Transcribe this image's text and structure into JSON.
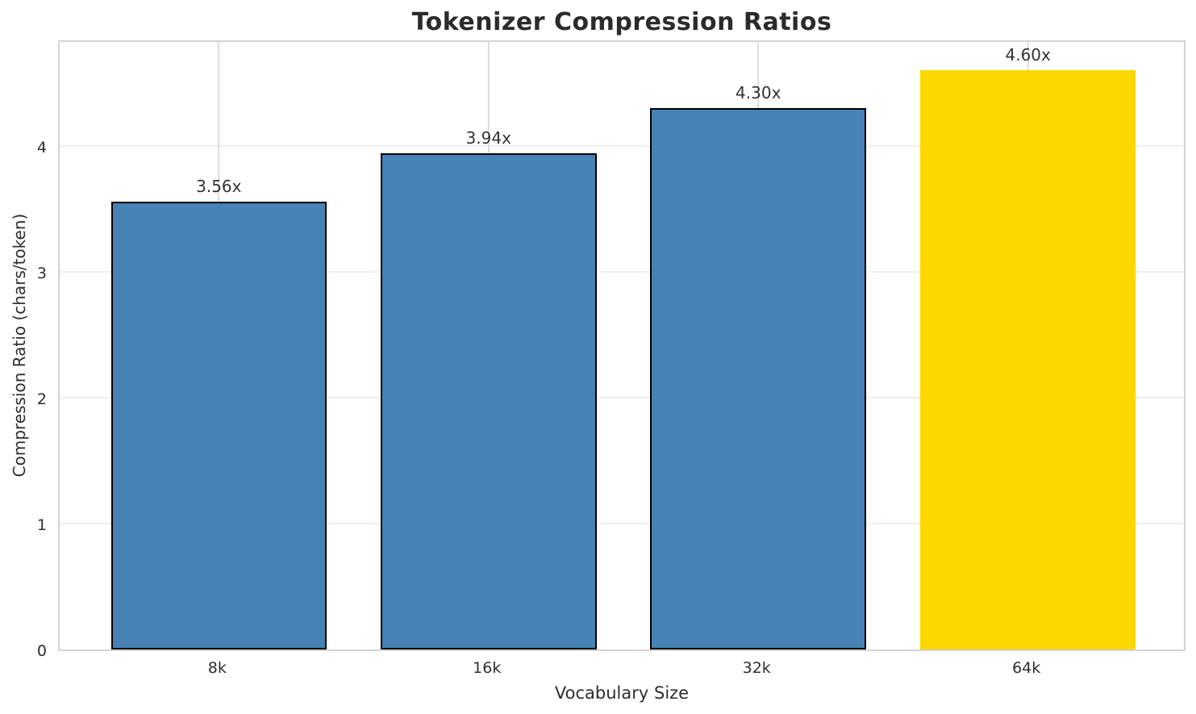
{
  "chart_data": {
    "type": "bar",
    "title": "Tokenizer Compression Ratios",
    "xlabel": "Vocabulary Size",
    "ylabel": "Compression Ratio (chars/token)",
    "categories": [
      "8k",
      "16k",
      "32k",
      "64k"
    ],
    "values": [
      3.56,
      3.94,
      4.3,
      4.6
    ],
    "bar_labels": [
      "3.56x",
      "3.94x",
      "4.30x",
      "4.60x"
    ],
    "bar_colors": [
      "#4682b4",
      "#4682b4",
      "#4682b4",
      "#ffd700"
    ],
    "bar_edge_colors": [
      "#000000",
      "#000000",
      "#000000",
      "none"
    ],
    "highlight_index": 3,
    "yticks": [
      0,
      1,
      2,
      3,
      4
    ],
    "ylim": [
      0,
      4.853
    ],
    "grid": true,
    "legend": "none",
    "colors": {
      "bar_default": "#4682b4",
      "bar_highlight": "#ffd700",
      "bar_edge": "#000000",
      "spine": "#d4d4d4",
      "grid_horizontal": "#efefef",
      "grid_vertical": "#dedede",
      "title_text": "#2b2b2b",
      "tick_text": "#2e2e2e",
      "value_label_text": "#333333"
    }
  }
}
